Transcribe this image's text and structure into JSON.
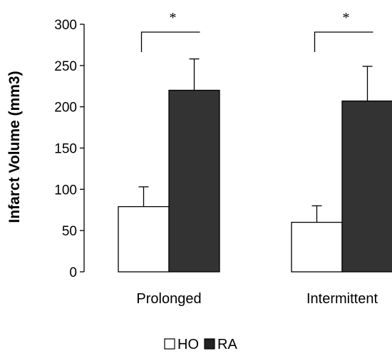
{
  "chart_data": {
    "type": "bar",
    "ylabel": "Infarct Volume (mm3)",
    "xlabel": "",
    "ylim": [
      0,
      300
    ],
    "yticks": [
      0,
      50,
      100,
      150,
      200,
      250,
      300
    ],
    "categories": [
      "Prolonged",
      "Intermittent"
    ],
    "series": [
      {
        "name": "HO",
        "values": [
          79,
          60
        ],
        "errors": [
          24,
          20
        ],
        "color": "#ffffff"
      },
      {
        "name": "RA",
        "values": [
          220,
          207
        ],
        "errors": [
          38,
          42
        ],
        "color": "#333333"
      }
    ],
    "significance": [
      "*",
      "*"
    ],
    "legend_position": "bottom-center",
    "grid": false
  }
}
